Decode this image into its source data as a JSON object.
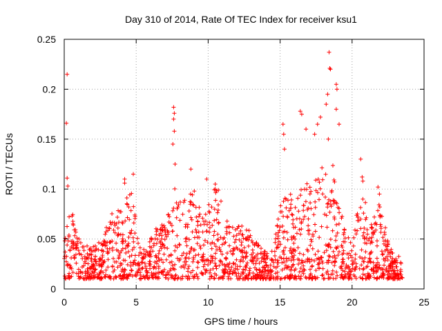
{
  "chart_data": {
    "type": "scatter",
    "title": "Day 310 of 2014, Rate Of TEC Index for receiver ksu1",
    "xlabel": "GPS time / hours",
    "ylabel": "ROTI / TECUs",
    "xlim": [
      0,
      25
    ],
    "ylim": [
      0,
      0.25
    ],
    "xticks": [
      0,
      5,
      10,
      15,
      20,
      25
    ],
    "yticks": [
      0,
      0.05,
      0.1,
      0.15,
      0.2,
      0.25
    ],
    "ytick_labels": [
      "0",
      "0.05",
      "0.1",
      "0.15",
      "0.2",
      "0.25"
    ],
    "grid": true,
    "marker": "plus",
    "color": "#ff0000",
    "series": [
      {
        "x_range": [
          0,
          23.5
        ],
        "approx_baseline": [
          0.01,
          0.04
        ],
        "notable_points": [
          {
            "x": 0.2,
            "y": 0.215
          },
          {
            "x": 0.15,
            "y": 0.166
          },
          {
            "x": 0.2,
            "y": 0.111
          },
          {
            "x": 0.25,
            "y": 0.103
          },
          {
            "x": 4.2,
            "y": 0.11
          },
          {
            "x": 4.2,
            "y": 0.106
          },
          {
            "x": 4.8,
            "y": 0.115
          },
          {
            "x": 7.6,
            "y": 0.182
          },
          {
            "x": 7.65,
            "y": 0.176
          },
          {
            "x": 7.6,
            "y": 0.17
          },
          {
            "x": 7.65,
            "y": 0.158
          },
          {
            "x": 7.55,
            "y": 0.145
          },
          {
            "x": 7.7,
            "y": 0.125
          },
          {
            "x": 8.8,
            "y": 0.12
          },
          {
            "x": 9.9,
            "y": 0.11
          },
          {
            "x": 10.5,
            "y": 0.1
          },
          {
            "x": 15.2,
            "y": 0.165
          },
          {
            "x": 15.25,
            "y": 0.155
          },
          {
            "x": 15.3,
            "y": 0.14
          },
          {
            "x": 16.4,
            "y": 0.178
          },
          {
            "x": 16.5,
            "y": 0.175
          },
          {
            "x": 16.8,
            "y": 0.16
          },
          {
            "x": 17.4,
            "y": 0.155
          },
          {
            "x": 17.6,
            "y": 0.165
          },
          {
            "x": 17.8,
            "y": 0.172
          },
          {
            "x": 18.2,
            "y": 0.185
          },
          {
            "x": 18.4,
            "y": 0.237
          },
          {
            "x": 18.45,
            "y": 0.221
          },
          {
            "x": 18.5,
            "y": 0.22
          },
          {
            "x": 18.3,
            "y": 0.195
          },
          {
            "x": 18.35,
            "y": 0.15
          },
          {
            "x": 18.9,
            "y": 0.205
          },
          {
            "x": 18.95,
            "y": 0.2
          },
          {
            "x": 18.9,
            "y": 0.18
          },
          {
            "x": 19.1,
            "y": 0.165
          },
          {
            "x": 20.6,
            "y": 0.13
          },
          {
            "x": 20.7,
            "y": 0.112
          },
          {
            "x": 20.75,
            "y": 0.108
          },
          {
            "x": 21.8,
            "y": 0.102
          },
          {
            "x": 21.9,
            "y": 0.095
          }
        ]
      }
    ]
  }
}
